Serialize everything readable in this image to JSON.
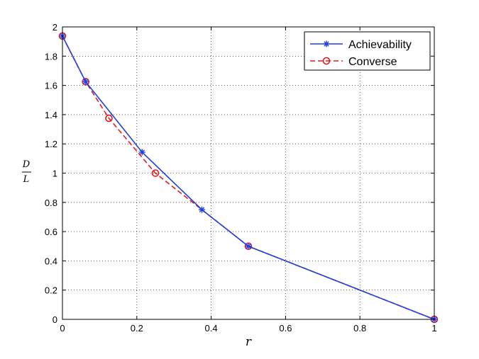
{
  "chart_data": {
    "type": "line",
    "xlabel": "r",
    "ylabel": {
      "numerator": "D",
      "denominator": "L"
    },
    "xlim": [
      0,
      1
    ],
    "ylim": [
      0,
      2
    ],
    "xticks": [
      0,
      0.2,
      0.4,
      0.6,
      0.8,
      1
    ],
    "yticks": [
      0,
      0.2,
      0.4,
      0.6,
      0.8,
      1,
      1.2,
      1.4,
      1.6,
      1.8,
      2
    ],
    "xtick_labels": [
      "0",
      "0.2",
      "0.4",
      "0.6",
      "0.8",
      "1"
    ],
    "ytick_labels": [
      "0",
      "0.2",
      "0.4",
      "0.6",
      "0.8",
      "1",
      "1.2",
      "1.4",
      "1.6",
      "1.8",
      "2"
    ],
    "grid": true,
    "legend_position": "top-right",
    "series": [
      {
        "name": "Achievability",
        "color": "#1f3fe0",
        "line_style": "solid",
        "marker": "asterisk",
        "x": [
          0,
          0.0625,
          0.2143,
          0.375,
          0.5,
          1
        ],
        "y": [
          1.9375,
          1.625,
          1.1429,
          0.75,
          0.5,
          0
        ]
      },
      {
        "name": "Converse",
        "color": "#e41a1c",
        "line_style": "dashed",
        "marker": "circle",
        "x": [
          0,
          0.0625,
          0.125,
          0.25,
          0.5,
          1
        ],
        "y": [
          1.9375,
          1.625,
          1.375,
          1.0,
          0.5,
          0
        ]
      }
    ]
  }
}
